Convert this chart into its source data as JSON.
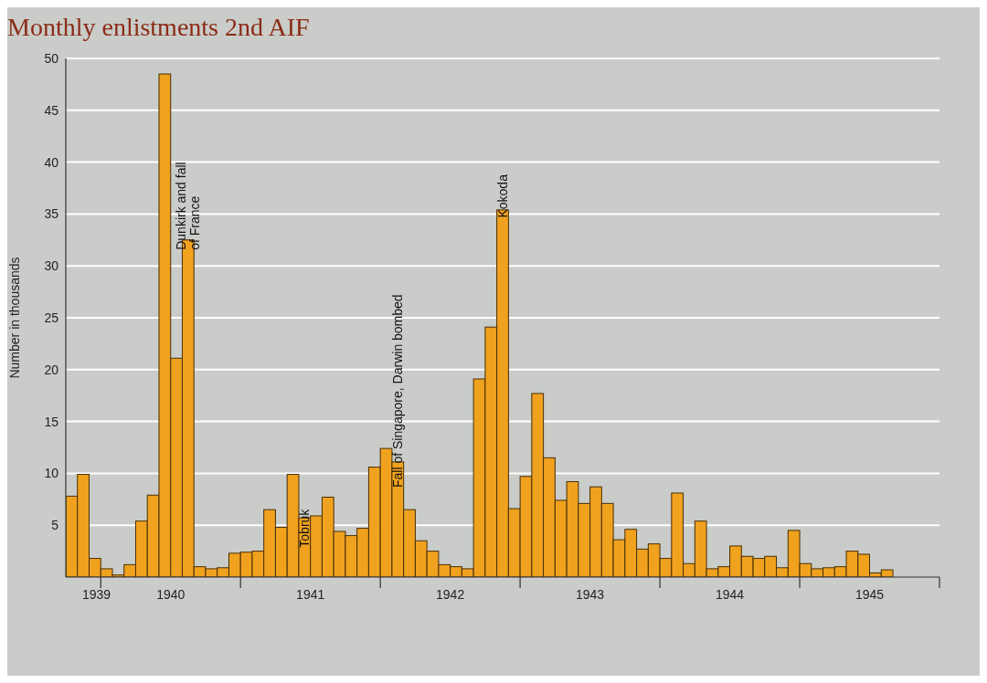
{
  "chart_data": {
    "type": "bar",
    "title": "Monthly enlistments 2nd AIF",
    "ylabel": "Number in thousands",
    "x": [
      "1939-10-16",
      "1939-11-16",
      "1939-12-16",
      "1940-01-16",
      "1940-02-16",
      "1940-03-16",
      "1940-04-16",
      "1940-05-16",
      "1940-06-16",
      "1940-07-16",
      "1940-08-16",
      "1940-09-16",
      "1940-10-16",
      "1940-11-16",
      "1940-12-16",
      "1941-01-16",
      "1941-02-16",
      "1941-03-16",
      "1941-04-16",
      "1941-05-16",
      "1941-06-16",
      "1941-07-16",
      "1941-08-16",
      "1941-09-16",
      "1941-10-16",
      "1941-11-16",
      "1941-12-16",
      "1942-01-16",
      "1942-02-16",
      "1942-03-16",
      "1942-04-16",
      "1942-05-16",
      "1942-06-16",
      "1942-07-16",
      "1942-08-16",
      "1942-09-16",
      "1942-10-16",
      "1942-11-16",
      "1942-12-16",
      "1943-01-16",
      "1943-02-16",
      "1943-03-16",
      "1943-04-16",
      "1943-05-16",
      "1943-06-16",
      "1943-07-16",
      "1943-08-16",
      "1943-09-16",
      "1943-10-16",
      "1943-11-16",
      "1943-12-16",
      "1944-01-16",
      "1944-02-16",
      "1944-03-16",
      "1944-04-16",
      "1944-05-16",
      "1944-06-16",
      "1944-07-16",
      "1944-08-16",
      "1944-09-16",
      "1944-10-16",
      "1944-11-16",
      "1944-12-16",
      "1945-01-16",
      "1945-02-16",
      "1945-03-16",
      "1945-04-16",
      "1945-05-16",
      "1945-06-16",
      "1945-07-16",
      "1945-08-16"
    ],
    "values": [
      7.8,
      9.9,
      1.8,
      0.8,
      0.2,
      1.2,
      5.4,
      7.9,
      48.5,
      21.1,
      32.5,
      1.0,
      0.8,
      0.9,
      2.3,
      2.4,
      2.5,
      6.5,
      4.8,
      9.9,
      5.7,
      5.9,
      7.7,
      4.4,
      4.0,
      4.7,
      10.6,
      12.4,
      11.1,
      6.5,
      3.5,
      2.5,
      1.2,
      1.0,
      0.8,
      19.1,
      24.1,
      35.4,
      6.6,
      9.7,
      17.7,
      11.5,
      7.4,
      9.2,
      7.1,
      8.7,
      7.1,
      3.6,
      4.6,
      2.7,
      3.2,
      1.8,
      8.1,
      1.3,
      5.4,
      0.8,
      1.0,
      3.0,
      2.0,
      1.8,
      2.0,
      0.9,
      4.5,
      1.3,
      0.8,
      0.9,
      1.0,
      2.5,
      2.2,
      0.4,
      0.7
    ],
    "color": "#f0a21e",
    "xlim": [
      "1939-10",
      "1946-01"
    ],
    "xticks": [
      {
        "value": "1939-12-20",
        "label": "1939"
      },
      {
        "value": "1940-01",
        "label": null
      },
      {
        "value": "1940-07",
        "label": "1940"
      },
      {
        "value": "1941-01",
        "label": null
      },
      {
        "value": "1941-07",
        "label": "1941"
      },
      {
        "value": "1942-01",
        "label": null
      },
      {
        "value": "1942-07",
        "label": "1942"
      },
      {
        "value": "1943-01",
        "label": null
      },
      {
        "value": "1943-07",
        "label": "1943"
      },
      {
        "value": "1944-01",
        "label": null
      },
      {
        "value": "1944-07",
        "label": "1944"
      },
      {
        "value": "1945-01",
        "label": null
      },
      {
        "value": "1945-07",
        "label": "1945"
      },
      {
        "value": "1946-01",
        "label": null
      }
    ],
    "ylim": [
      0,
      50
    ],
    "yticks": [
      5,
      10,
      15,
      20,
      25,
      30,
      35,
      40,
      45,
      50
    ],
    "grid": "y",
    "annotations": [
      {
        "text": "Dunkirk and fall\nof France",
        "x": "1940-08-16",
        "y": 32.5
      },
      {
        "text": "Tobruk",
        "x": "1941-06-16",
        "y": 5.7
      },
      {
        "text": "Fall of Singapore, Darwin bombed",
        "x": "1942-02-16",
        "y": 11.1
      },
      {
        "text": "Kokoda",
        "x": "1942-11-16",
        "y": 35.4
      }
    ]
  }
}
